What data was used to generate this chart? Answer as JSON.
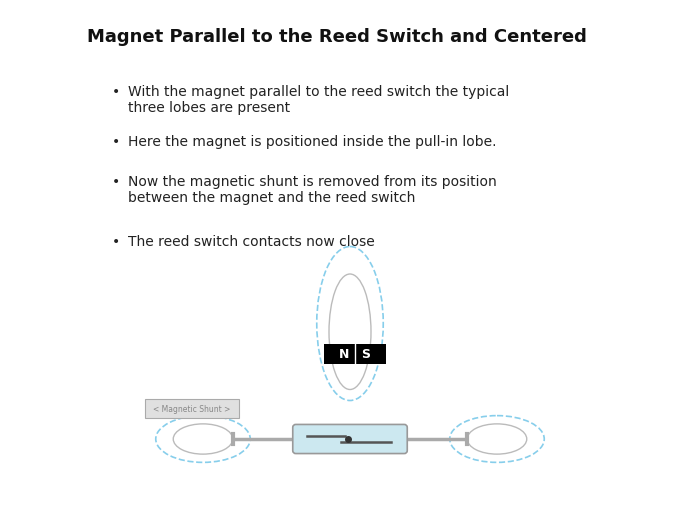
{
  "title": "Magnet Parallel to the Reed Switch and Centered",
  "bullets": [
    "With the magnet parallel to the reed switch the typical\nthree lobes are present",
    "Here the magnet is positioned inside the pull-in lobe.",
    "Now the magnetic shunt is removed from its position\nbetween the magnet and the reed switch",
    "The reed switch contacts now close"
  ],
  "bg_color": "#ffffff",
  "title_fontsize": 13,
  "bullet_fontsize": 10,
  "lobe_dashed_color": "#87ceeb",
  "lobe_solid_color": "#bbbbbb",
  "reed_fill": "#cce8f0",
  "reed_border": "#999999",
  "lead_color": "#aaaaaa",
  "magnet_bg": "#000000",
  "magnet_text": "#ffffff",
  "shunt_box_bg": "#e0e0e0",
  "shunt_box_border": "#aaaaaa",
  "shunt_text_color": "#888888",
  "shunt_label": "< Magnetic Shunt >"
}
